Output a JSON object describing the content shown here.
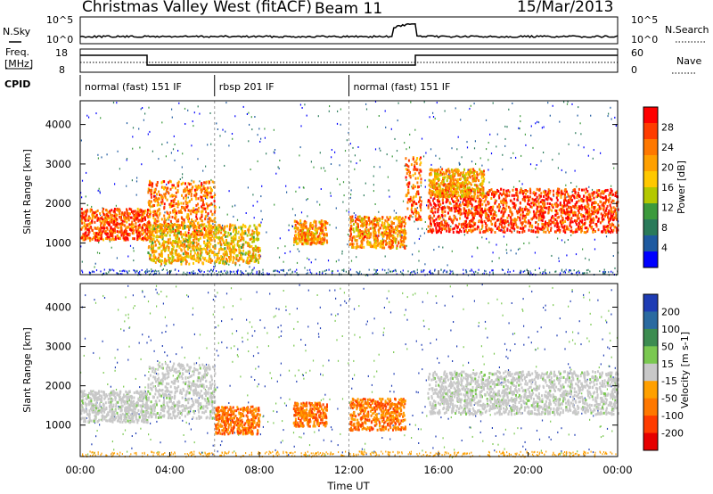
{
  "header": {
    "station": "Christmas Valley West (fitACF)",
    "beam": "Beam 11",
    "date": "15/Mar/2013"
  },
  "panels": {
    "nsky_label": "N.Sky",
    "nsky_ticks": [
      "10^5",
      "10^0"
    ],
    "nsearch_label": "N.Search",
    "freq_label": "Freq.",
    "freq_unit": "[MHz]",
    "freq_ticks": [
      "18",
      "8"
    ],
    "nave_label": "Nave",
    "nave_ticks": [
      "60",
      "0"
    ],
    "cpid_label": "CPID"
  },
  "cpid_segments": [
    {
      "label": "normal (fast) 151 IF",
      "start_hour": 0,
      "end_hour": 6
    },
    {
      "label": "rbsp 201 IF",
      "start_hour": 6,
      "end_hour": 12
    },
    {
      "label": "normal (fast) 151 IF",
      "start_hour": 12,
      "end_hour": 24
    }
  ],
  "chart_data": [
    {
      "type": "heatmap",
      "quantity": "Power",
      "ylabel": "Slant Range [km]",
      "xlabel": "Time UT",
      "xlim_hours": [
        0,
        24
      ],
      "ylim_km": [
        200,
        4600
      ],
      "yticks": [
        "4000",
        "3000",
        "2000",
        "1000"
      ],
      "xticks": [
        "00:00",
        "04:00",
        "08:00",
        "12:00",
        "16:00",
        "20:00",
        "00:00"
      ],
      "colorbar": {
        "label": "Power [dB]",
        "ticks": [
          "28",
          "24",
          "20",
          "16",
          "12",
          "8",
          "4"
        ],
        "colors": [
          "#ff0000",
          "#ff3c00",
          "#ff7800",
          "#ffa000",
          "#ffc800",
          "#b4c800",
          "#3c9a3c",
          "#2a7a5a",
          "#1e5aa0",
          "#0000ff"
        ]
      },
      "regions": [
        {
          "t0": 0.0,
          "t1": 3.0,
          "r0": 1100,
          "r1": 1900,
          "level": 0.85
        },
        {
          "t0": 3.0,
          "t1": 6.0,
          "r0": 1200,
          "r1": 2600,
          "level": 0.75
        },
        {
          "t0": 3.0,
          "t1": 8.0,
          "r0": 500,
          "r1": 1500,
          "level": 0.6
        },
        {
          "t0": 9.5,
          "t1": 11.0,
          "r0": 1000,
          "r1": 1600,
          "level": 0.7
        },
        {
          "t0": 12.0,
          "t1": 14.5,
          "r0": 900,
          "r1": 1700,
          "level": 0.7
        },
        {
          "t0": 14.5,
          "t1": 15.2,
          "r0": 1600,
          "r1": 3200,
          "level": 0.8
        },
        {
          "t0": 15.5,
          "t1": 24.0,
          "r0": 1300,
          "r1": 2400,
          "level": 0.9
        },
        {
          "t0": 15.5,
          "t1": 18.0,
          "r0": 2200,
          "r1": 2900,
          "level": 0.65
        }
      ]
    },
    {
      "type": "heatmap",
      "quantity": "Velocity",
      "ylabel": "Slant Range [km]",
      "xlabel": "Time UT",
      "xlim_hours": [
        0,
        24
      ],
      "ylim_km": [
        200,
        4600
      ],
      "yticks": [
        "4000",
        "3000",
        "2000",
        "1000"
      ],
      "xticks": [
        "00:00",
        "04:00",
        "08:00",
        "12:00",
        "16:00",
        "20:00",
        "00:00"
      ],
      "colorbar": {
        "label": "Velocity [m s-1]",
        "ticks": [
          "200",
          "100",
          "50",
          "15",
          "-15",
          "-50",
          "-100",
          "-200"
        ],
        "colors": [
          "#1e3cb4",
          "#2a6aa0",
          "#3c8c50",
          "#7ac850",
          "#c8c8c8",
          "#ffa000",
          "#ff7800",
          "#ff3c00",
          "#e60000"
        ]
      },
      "regions": [
        {
          "t0": 0.0,
          "t1": 3.0,
          "r0": 1100,
          "r1": 1900,
          "level": "ground"
        },
        {
          "t0": 3.0,
          "t1": 6.0,
          "r0": 1200,
          "r1": 2600,
          "level": "ground"
        },
        {
          "t0": 6.0,
          "t1": 8.0,
          "r0": 800,
          "r1": 1500,
          "level": "negative"
        },
        {
          "t0": 9.5,
          "t1": 11.0,
          "r0": 1000,
          "r1": 1600,
          "level": "negative"
        },
        {
          "t0": 12.0,
          "t1": 14.5,
          "r0": 900,
          "r1": 1700,
          "level": "negative"
        },
        {
          "t0": 15.5,
          "t1": 24.0,
          "r0": 1300,
          "r1": 2400,
          "level": "ground"
        }
      ]
    }
  ]
}
